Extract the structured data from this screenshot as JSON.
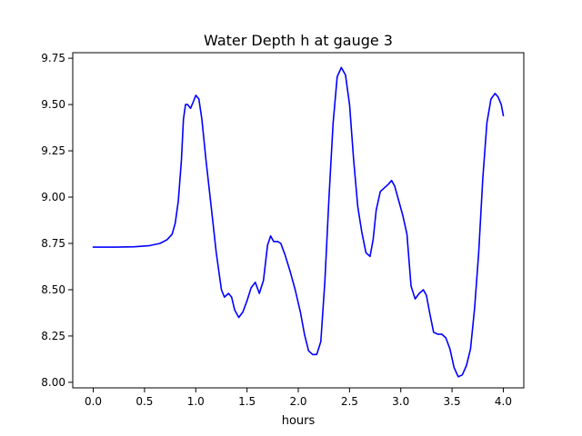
{
  "chart_data": {
    "type": "line",
    "title": "Water Depth h at gauge 3",
    "xlabel": "hours",
    "ylabel": "",
    "xlim": [
      -0.2,
      4.2
    ],
    "ylim": [
      7.97,
      9.78
    ],
    "xticks": [
      0.0,
      0.5,
      1.0,
      1.5,
      2.0,
      2.5,
      3.0,
      3.5,
      4.0
    ],
    "xtick_labels": [
      "0.0",
      "0.5",
      "1.0",
      "1.5",
      "2.0",
      "2.5",
      "3.0",
      "3.5",
      "4.0"
    ],
    "yticks": [
      8.0,
      8.25,
      8.5,
      8.75,
      9.0,
      9.25,
      9.5,
      9.75
    ],
    "ytick_labels": [
      "8.00",
      "8.25",
      "8.50",
      "8.75",
      "9.00",
      "9.25",
      "9.50",
      "9.75"
    ],
    "grid": false,
    "series": [
      {
        "color": "#0000ff",
        "x": [
          0.0,
          0.2,
          0.4,
          0.55,
          0.65,
          0.72,
          0.77,
          0.8,
          0.83,
          0.86,
          0.88,
          0.9,
          0.92,
          0.95,
          0.98,
          1.0,
          1.03,
          1.06,
          1.1,
          1.15,
          1.2,
          1.25,
          1.28,
          1.32,
          1.35,
          1.38,
          1.42,
          1.46,
          1.5,
          1.54,
          1.58,
          1.62,
          1.66,
          1.7,
          1.73,
          1.76,
          1.8,
          1.83,
          1.87,
          1.92,
          1.97,
          2.02,
          2.06,
          2.1,
          2.14,
          2.18,
          2.22,
          2.26,
          2.3,
          2.34,
          2.38,
          2.42,
          2.46,
          2.5,
          2.54,
          2.58,
          2.62,
          2.66,
          2.7,
          2.73,
          2.76,
          2.8,
          2.84,
          2.88,
          2.91,
          2.94,
          2.98,
          3.02,
          3.06,
          3.1,
          3.14,
          3.18,
          3.22,
          3.25,
          3.28,
          3.32,
          3.36,
          3.4,
          3.44,
          3.48,
          3.52,
          3.56,
          3.6,
          3.64,
          3.68,
          3.72,
          3.76,
          3.8,
          3.84,
          3.88,
          3.92,
          3.95,
          3.98,
          4.0
        ],
        "y": [
          8.73,
          8.73,
          8.732,
          8.738,
          8.75,
          8.77,
          8.8,
          8.86,
          8.98,
          9.2,
          9.42,
          9.5,
          9.5,
          9.48,
          9.52,
          9.55,
          9.53,
          9.42,
          9.2,
          8.95,
          8.7,
          8.5,
          8.46,
          8.48,
          8.46,
          8.39,
          8.35,
          8.38,
          8.44,
          8.51,
          8.54,
          8.48,
          8.55,
          8.74,
          8.79,
          8.76,
          8.76,
          8.75,
          8.69,
          8.6,
          8.5,
          8.38,
          8.26,
          8.17,
          8.15,
          8.15,
          8.22,
          8.55,
          9.0,
          9.4,
          9.65,
          9.7,
          9.66,
          9.5,
          9.2,
          8.95,
          8.81,
          8.7,
          8.68,
          8.77,
          8.93,
          9.03,
          9.05,
          9.07,
          9.09,
          9.06,
          8.98,
          8.9,
          8.8,
          8.52,
          8.45,
          8.48,
          8.5,
          8.47,
          8.38,
          8.27,
          8.26,
          8.26,
          8.24,
          8.18,
          8.08,
          8.03,
          8.04,
          8.09,
          8.18,
          8.4,
          8.7,
          9.1,
          9.4,
          9.53,
          9.56,
          9.54,
          9.5,
          9.44
        ]
      }
    ]
  }
}
